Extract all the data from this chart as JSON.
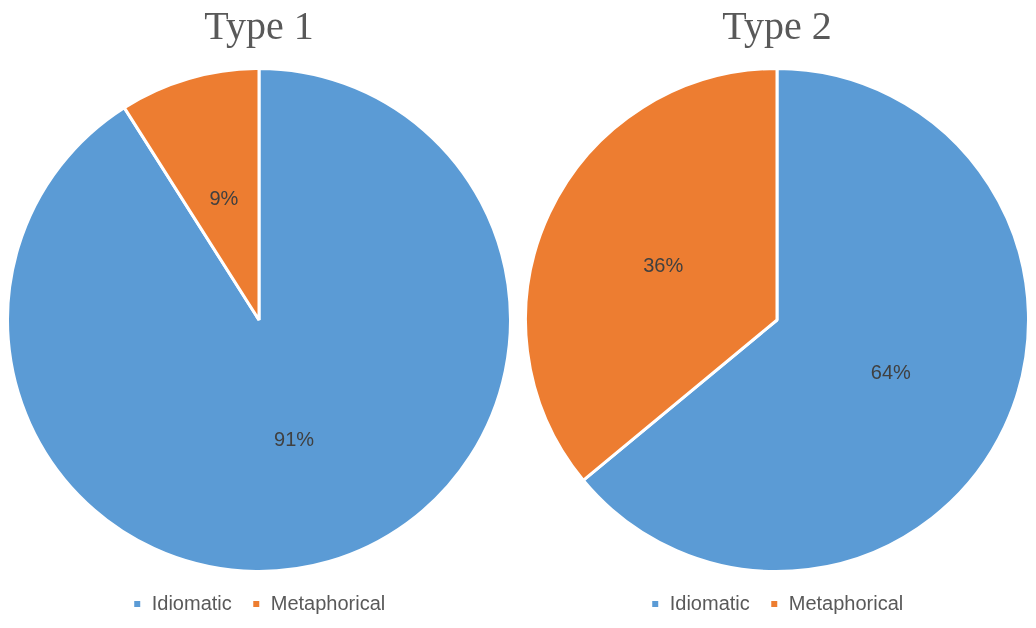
{
  "chart_data": [
    {
      "type": "pie",
      "title": "Type 1",
      "categories": [
        "Idiomatic",
        "Metaphorical"
      ],
      "values": [
        91,
        9
      ],
      "colors": [
        "#5b9bd5",
        "#ed7d31"
      ],
      "value_labels": [
        "91%",
        "9%"
      ],
      "legend": "bottom"
    },
    {
      "type": "pie",
      "title": "Type 2",
      "categories": [
        "Idiomatic",
        "Metaphorical"
      ],
      "values": [
        64,
        36
      ],
      "colors": [
        "#5b9bd5",
        "#ed7d31"
      ],
      "value_labels": [
        "64%",
        "36%"
      ],
      "legend": "bottom"
    }
  ]
}
